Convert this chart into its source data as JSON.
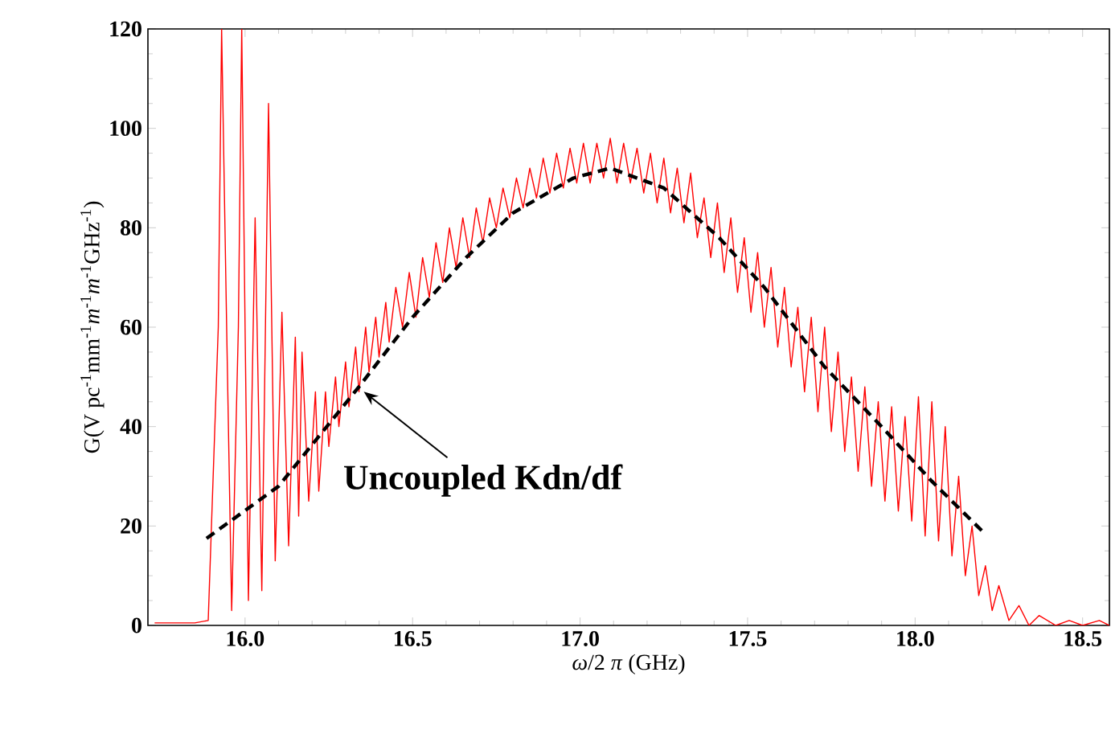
{
  "chart_data": {
    "type": "line",
    "xlabel": "*ω*/2 *π* (GHz)",
    "ylabel": "G(V pc$^{-1}$mm$^{-1}$*m*$^{-1}$*m*$^{-1}$GHz$^{-1}$)",
    "xlim": [
      15.71,
      18.58
    ],
    "ylim": [
      0,
      120
    ],
    "xticks": [
      {
        "value": 16,
        "label": "16.0"
      },
      16.5,
      {
        "value": 17,
        "label": "17.0"
      },
      17.5,
      {
        "value": 18,
        "label": "18.0"
      },
      18.5
    ],
    "yticks": [
      0,
      20,
      40,
      60,
      80,
      100,
      120
    ],
    "grid": false,
    "legend": false,
    "annotations": [
      {
        "text": "Uncoupled Kdn/df",
        "x": 16.34,
        "y": 48
      }
    ],
    "series": [
      {
        "color": "#ff0000",
        "x": [
          15.73,
          15.85,
          15.89,
          15.92,
          15.93,
          15.945,
          15.96,
          15.98,
          15.99,
          16.0,
          16.01,
          16.03,
          16.05,
          16.07,
          16.09,
          16.11,
          16.13,
          16.15,
          16.16,
          16.17,
          16.19,
          16.21,
          16.22,
          16.24,
          16.25,
          16.27,
          16.28,
          16.3,
          16.31,
          16.33,
          16.34,
          16.36,
          16.37,
          16.39,
          16.4,
          16.42,
          16.43,
          16.45,
          16.47,
          16.49,
          16.51,
          16.53,
          16.55,
          16.57,
          16.59,
          16.61,
          16.63,
          16.65,
          16.67,
          16.69,
          16.71,
          16.73,
          16.75,
          16.77,
          16.79,
          16.81,
          16.83,
          16.85,
          16.87,
          16.89,
          16.91,
          16.93,
          16.95,
          16.97,
          16.99,
          17.01,
          17.03,
          17.05,
          17.07,
          17.09,
          17.11,
          17.13,
          17.15,
          17.17,
          17.19,
          17.21,
          17.23,
          17.25,
          17.27,
          17.29,
          17.31,
          17.33,
          17.35,
          17.37,
          17.39,
          17.41,
          17.43,
          17.45,
          17.47,
          17.49,
          17.51,
          17.53,
          17.55,
          17.57,
          17.59,
          17.61,
          17.63,
          17.65,
          17.67,
          17.69,
          17.71,
          17.73,
          17.75,
          17.77,
          17.79,
          17.81,
          17.83,
          17.85,
          17.87,
          17.89,
          17.91,
          17.93,
          17.95,
          17.97,
          17.99,
          18.01,
          18.03,
          18.05,
          18.07,
          18.09,
          18.11,
          18.13,
          18.15,
          18.17,
          18.19,
          18.21,
          18.23,
          18.25,
          18.28,
          18.31,
          18.34,
          18.37,
          18.42,
          18.46,
          18.5,
          18.55,
          18.58
        ],
        "values": [
          0.5,
          0.5,
          1,
          60,
          120,
          60,
          3,
          60,
          120,
          60,
          5,
          82,
          7,
          105,
          13,
          63,
          16,
          58,
          22,
          55,
          25,
          47,
          27,
          47,
          36,
          50,
          40,
          53,
          44,
          56,
          47,
          60,
          51,
          62,
          54,
          65,
          57,
          68,
          60,
          71,
          62,
          74,
          66,
          77,
          69,
          80,
          72,
          82,
          74,
          84,
          77,
          86,
          80,
          88,
          82,
          90,
          84,
          92,
          86,
          94,
          87,
          95,
          88,
          96,
          89,
          97,
          89,
          97,
          90,
          98,
          89,
          97,
          89,
          96,
          87,
          95,
          85,
          94,
          83,
          92,
          81,
          91,
          78,
          86,
          74,
          85,
          71,
          82,
          67,
          78,
          63,
          75,
          60,
          72,
          56,
          68,
          52,
          64,
          47,
          62,
          43,
          60,
          39,
          55,
          35,
          50,
          31,
          48,
          28,
          45,
          25,
          44,
          23,
          42,
          21,
          46,
          18,
          45,
          17,
          40,
          14,
          30,
          10,
          20,
          6,
          12,
          3,
          8,
          1,
          4,
          0,
          2,
          0,
          1,
          0,
          1,
          0
        ]
      },
      {
        "color": "#000000",
        "line_style": "dashed",
        "x": [
          15.885,
          16.1,
          16.34,
          16.5,
          16.66,
          16.8,
          16.98,
          17.09,
          17.25,
          17.415,
          17.55,
          17.73,
          17.9,
          18.05,
          18.2
        ],
        "values": [
          17.5,
          28,
          48,
          62,
          74,
          83,
          90,
          92,
          88,
          78,
          68,
          52,
          40,
          29,
          19
        ]
      }
    ]
  }
}
